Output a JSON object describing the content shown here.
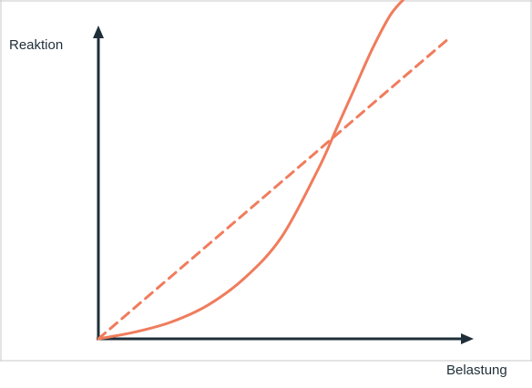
{
  "chart_data": {
    "type": "line",
    "xlabel": "Belastung",
    "ylabel": "Reaktion",
    "xlim": [
      0,
      1
    ],
    "ylim": [
      0,
      1
    ],
    "grid": false,
    "legend": "none",
    "series": [
      {
        "style": "solid",
        "color": "#f07c5c",
        "x": [
          0.0,
          0.1,
          0.2,
          0.3,
          0.4,
          0.5,
          0.6,
          0.65,
          0.7,
          0.75,
          0.8,
          0.85
        ],
        "y": [
          0.0,
          0.02,
          0.05,
          0.1,
          0.18,
          0.3,
          0.5,
          0.62,
          0.74,
          0.86,
          0.96,
          1.02
        ]
      },
      {
        "style": "dashed",
        "color": "#f07c5c",
        "x": [
          0.0,
          0.95
        ],
        "y": [
          0.0,
          0.88
        ]
      }
    ]
  },
  "colors": {
    "axis": "#1f2f3a",
    "curve": "#f07c5c",
    "frame": "#c8c8c8"
  }
}
